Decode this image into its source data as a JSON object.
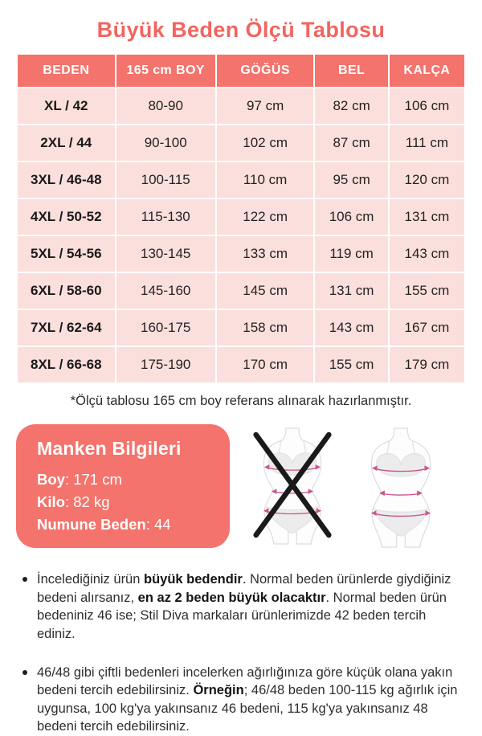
{
  "title": "Büyük Beden Ölçü Tablosu",
  "table": {
    "headers": [
      "BEDEN",
      "165 cm BOY",
      "GÖĞÜS",
      "BEL",
      "KALÇA"
    ],
    "rows": [
      [
        "XL / 42",
        "80-90",
        "97 cm",
        "82 cm",
        "106 cm"
      ],
      [
        "2XL / 44",
        "90-100",
        "102 cm",
        "87 cm",
        "111 cm"
      ],
      [
        "3XL / 46-48",
        "100-115",
        "110 cm",
        "95 cm",
        "120 cm"
      ],
      [
        "4XL / 50-52",
        "115-130",
        "122 cm",
        "106 cm",
        "131 cm"
      ],
      [
        "5XL / 54-56",
        "130-145",
        "133 cm",
        "119 cm",
        "143 cm"
      ],
      [
        "6XL / 58-60",
        "145-160",
        "145 cm",
        "131 cm",
        "155 cm"
      ],
      [
        "7XL / 62-64",
        "160-175",
        "158 cm",
        "143 cm",
        "167 cm"
      ],
      [
        "8XL / 66-68",
        "175-190",
        "170 cm",
        "155 cm",
        "179 cm"
      ]
    ],
    "footnote": "*Ölçü tablosu 165 cm boy referans alınarak hazırlanmıştır."
  },
  "model_info": {
    "title": "Manken Bilgileri",
    "separator": ": ",
    "fields": [
      {
        "label": "Boy",
        "value": "171 cm"
      },
      {
        "label": "Kilo",
        "value": "82 kg"
      },
      {
        "label": "Numune Beden",
        "value": "44"
      }
    ]
  },
  "figures": {
    "left_icon": "crossed-out-body-measurement-figure",
    "right_icon": "body-measurement-figure"
  },
  "bullets": [
    {
      "segments": [
        {
          "text": "İncelediğiniz ürün ",
          "bold": false
        },
        {
          "text": "büyük bedendir",
          "bold": true
        },
        {
          "text": ". Normal beden ürünlerde giydiğiniz bedeni alırsanız, ",
          "bold": false
        },
        {
          "text": "en az 2 beden büyük olacaktır",
          "bold": true
        },
        {
          "text": ". Normal beden ürün bedeniniz 46 ise; Stil Diva markaları ürünlerimizde 42 beden tercih ediniz.",
          "bold": false
        }
      ]
    },
    {
      "segments": [
        {
          "text": "46/48 gibi çiftli bedenleri incelerken ağırlığınıza göre küçük olana yakın bedeni tercih edebilirsiniz. ",
          "bold": false
        },
        {
          "text": "Örneğin",
          "bold": true
        },
        {
          "text": "; 46/48 beden 100-115 kg ağırlık için uygunsa, 100 kg'ya yakınsanız 46 bedeni, 115 kg'ya yakınsanız 48 bedeni tercih edebilirsiniz.",
          "bold": false
        }
      ]
    }
  ],
  "colors": {
    "accent": "#F4736C",
    "title_text": "#F2655F",
    "cell_background": "#FBDFDC",
    "header_text": "#FFFFFF",
    "body_text": "#2D2D2D",
    "measure_line": "#C9578F",
    "cross_mark": "#1A1A1A"
  }
}
